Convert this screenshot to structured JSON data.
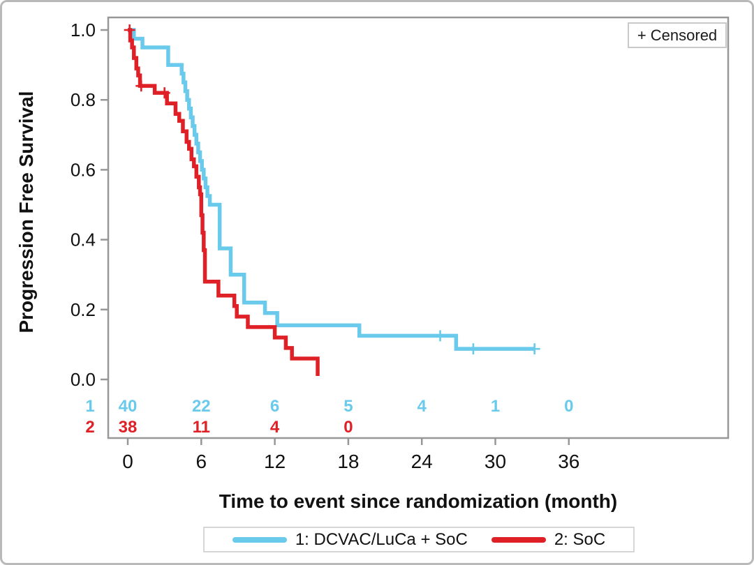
{
  "figure": {
    "y_axis_title": "Progression Free Survival",
    "x_axis_title": "Time to event since randomization (month)",
    "censored_label": "+ Censored"
  },
  "chart_data": {
    "type": "line",
    "subtype": "kaplan-meier-step",
    "title": "",
    "xlabel": "Time to event since randomization (month)",
    "ylabel": "Progression Free Survival",
    "xlim": [
      0,
      49
    ],
    "ylim": [
      0,
      1.0
    ],
    "xticks": [
      0,
      6,
      12,
      18,
      24,
      30,
      36
    ],
    "yticks": [
      0.0,
      0.2,
      0.4,
      0.6,
      0.8,
      1.0
    ],
    "grid": false,
    "legend_position": "bottom",
    "censored_marker": "+",
    "colors": {
      "group1_blue": "#69CAEC",
      "group2_red": "#DF2127",
      "axis_gray": "#979797"
    },
    "series": [
      {
        "name": "1: DCVAC/LuCa + SoC",
        "color": "#69CAEC",
        "points": [
          [
            0,
            1.0
          ],
          [
            0.5,
            0.975
          ],
          [
            1.2,
            0.95
          ],
          [
            3.3,
            0.9
          ],
          [
            4.4,
            0.875
          ],
          [
            4.55,
            0.85
          ],
          [
            4.7,
            0.825
          ],
          [
            4.85,
            0.8
          ],
          [
            5.0,
            0.775
          ],
          [
            5.15,
            0.75
          ],
          [
            5.3,
            0.725
          ],
          [
            5.45,
            0.7
          ],
          [
            5.6,
            0.675
          ],
          [
            5.75,
            0.65
          ],
          [
            5.9,
            0.625
          ],
          [
            6.05,
            0.6
          ],
          [
            6.2,
            0.575
          ],
          [
            6.35,
            0.55
          ],
          [
            6.5,
            0.525
          ],
          [
            6.7,
            0.5
          ],
          [
            7.5,
            0.375
          ],
          [
            8.4,
            0.3
          ],
          [
            9.5,
            0.22
          ],
          [
            11.2,
            0.19
          ],
          [
            12.2,
            0.155
          ],
          [
            18.9,
            0.125
          ],
          [
            26.8,
            0.0875
          ]
        ],
        "end_time": 33.2,
        "censor_times": [
          25.5,
          28.2,
          33.2
        ]
      },
      {
        "name": "2: SoC",
        "color": "#DF2127",
        "points": [
          [
            0,
            1.0
          ],
          [
            0.2,
            0.97
          ],
          [
            0.35,
            0.95
          ],
          [
            0.5,
            0.92
          ],
          [
            0.7,
            0.89
          ],
          [
            0.85,
            0.87
          ],
          [
            1.0,
            0.84
          ],
          [
            2.2,
            0.82
          ],
          [
            3.2,
            0.79
          ],
          [
            3.9,
            0.76
          ],
          [
            4.2,
            0.74
          ],
          [
            4.5,
            0.71
          ],
          [
            4.8,
            0.68
          ],
          [
            5.0,
            0.66
          ],
          [
            5.2,
            0.63
          ],
          [
            5.4,
            0.61
          ],
          [
            5.6,
            0.58
          ],
          [
            5.8,
            0.55
          ],
          [
            5.9,
            0.53
          ],
          [
            6.0,
            0.47
          ],
          [
            6.1,
            0.42
          ],
          [
            6.2,
            0.37
          ],
          [
            6.3,
            0.28
          ],
          [
            7.4,
            0.24
          ],
          [
            8.7,
            0.21
          ],
          [
            8.9,
            0.18
          ],
          [
            9.8,
            0.15
          ],
          [
            12.0,
            0.12
          ],
          [
            12.9,
            0.09
          ],
          [
            13.4,
            0.06
          ],
          [
            15.5,
            0.01
          ]
        ],
        "end_time": 15.5,
        "censor_times": [
          0.15,
          1.1,
          3.0
        ]
      }
    ],
    "at_risk": {
      "months": [
        0,
        6,
        12,
        18,
        24,
        30,
        36
      ],
      "rows": [
        {
          "label": "1",
          "color": "#69CAEC",
          "counts": [
            40,
            22,
            6,
            5,
            4,
            1,
            0
          ]
        },
        {
          "label": "2",
          "color": "#DF2127",
          "counts": [
            38,
            11,
            4,
            0
          ]
        }
      ]
    }
  }
}
